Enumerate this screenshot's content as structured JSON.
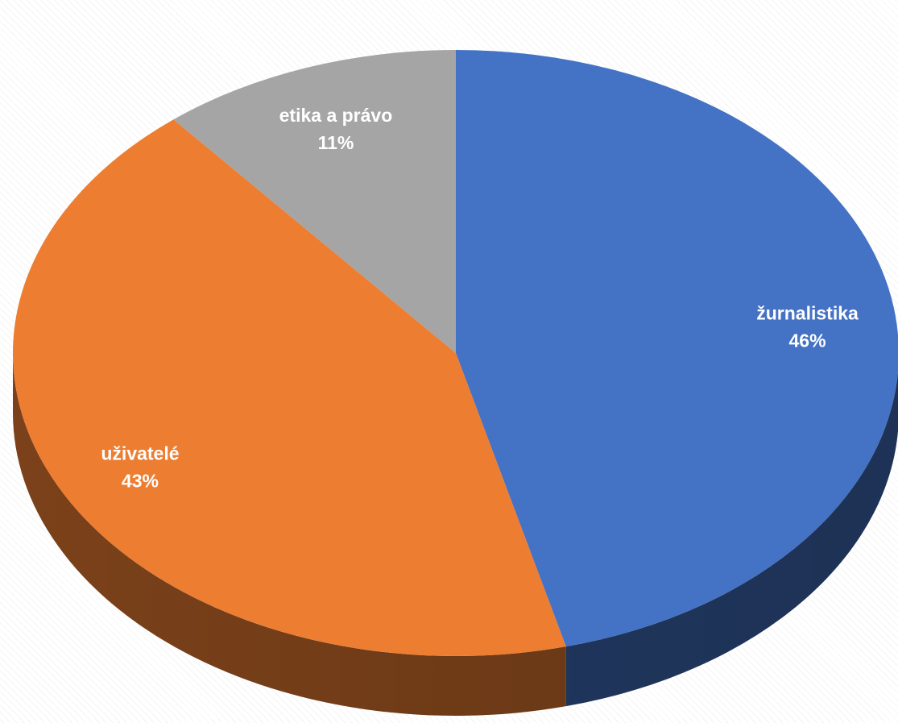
{
  "chart_data": {
    "type": "pie",
    "style": "3d",
    "categories": [
      "žurnalistika",
      "uživatelé",
      "etika a právo"
    ],
    "values": [
      46,
      43,
      11
    ],
    "labels": [
      "46%",
      "43%",
      "11%"
    ],
    "colors": [
      "#4472C4",
      "#ED7D31",
      "#A5A5A5"
    ],
    "legend": "none",
    "data_labels": "inside"
  }
}
